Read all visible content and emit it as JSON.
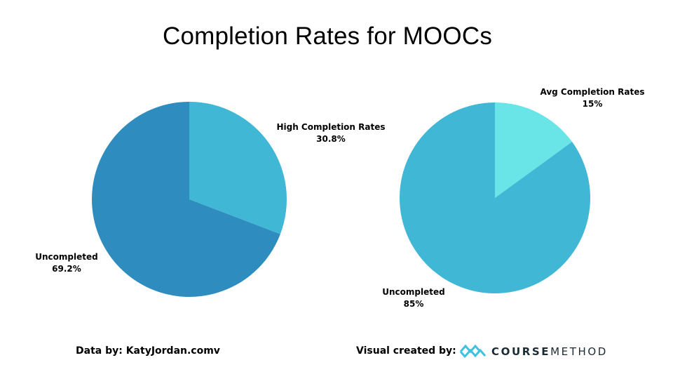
{
  "title": "Completion Rates for MOOCs",
  "chart_data": [
    {
      "type": "pie",
      "slices": [
        {
          "label": "High Completion Rates",
          "display": "30.8%",
          "value": 30.8,
          "color": "#41b7d6"
        },
        {
          "label": "Uncompleted",
          "display": "69.2%",
          "value": 69.2,
          "color": "#2e8cbe"
        }
      ]
    },
    {
      "type": "pie",
      "slices": [
        {
          "label": "Avg Completion Rates",
          "display": "15%",
          "value": 15,
          "color": "#69e4e7"
        },
        {
          "label": "Uncompleted",
          "display": "85%",
          "value": 85,
          "color": "#41b7d6"
        }
      ]
    }
  ],
  "footer": {
    "source": "Data by:  KatyJordan.comv",
    "credit": "Visual created by:"
  },
  "logo": {
    "bold": "COURSE",
    "light": "METHOD",
    "icon": "coursemethod-logo-icon",
    "color": "#3ec2e0"
  }
}
